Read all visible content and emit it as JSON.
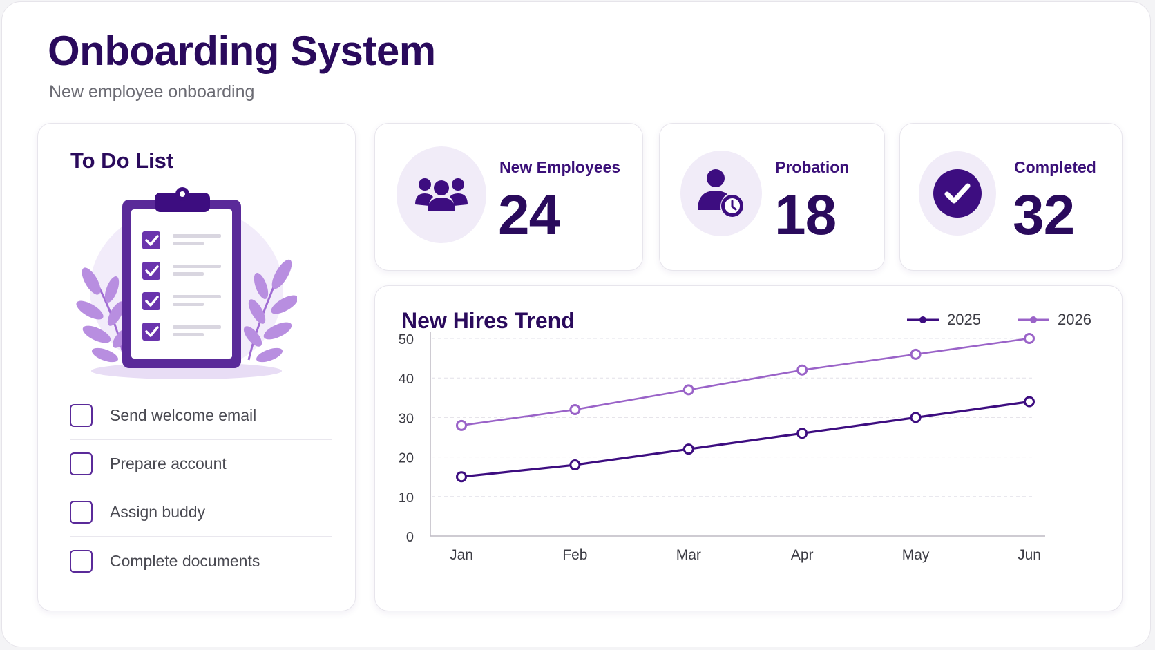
{
  "header": {
    "title": "Onboarding System",
    "subtitle": "New employee onboarding"
  },
  "todo": {
    "title": "To Do List",
    "items": [
      {
        "label": "Send welcome email",
        "checked": false
      },
      {
        "label": "Prepare account",
        "checked": false
      },
      {
        "label": "Assign buddy",
        "checked": false
      },
      {
        "label": "Complete documents",
        "checked": false
      }
    ]
  },
  "stats": [
    {
      "label": "New Employees",
      "value": "24",
      "icon": "users-group-icon"
    },
    {
      "label": "Probation",
      "value": "18",
      "icon": "user-clock-icon"
    },
    {
      "label": "Completed",
      "value": "32",
      "icon": "check-circle-icon"
    }
  ],
  "colors": {
    "primary": "#2a0a5c",
    "series_2025": "#3d0d80",
    "series_2026": "#9a63c8",
    "accent_bg": "#f1ecf8"
  },
  "chart_data": {
    "type": "line",
    "title": "New Hires Trend",
    "categories": [
      "Jan",
      "Feb",
      "Mar",
      "Apr",
      "May",
      "Jun"
    ],
    "series": [
      {
        "name": "2025",
        "values": [
          15,
          18,
          22,
          26,
          30,
          34
        ]
      },
      {
        "name": "2026",
        "values": [
          28,
          32,
          37,
          42,
          46,
          50
        ]
      }
    ],
    "ylim": [
      0,
      50
    ],
    "yticks": [
      0,
      10,
      20,
      30,
      40,
      50
    ],
    "grid": true,
    "legend": "top-right"
  }
}
